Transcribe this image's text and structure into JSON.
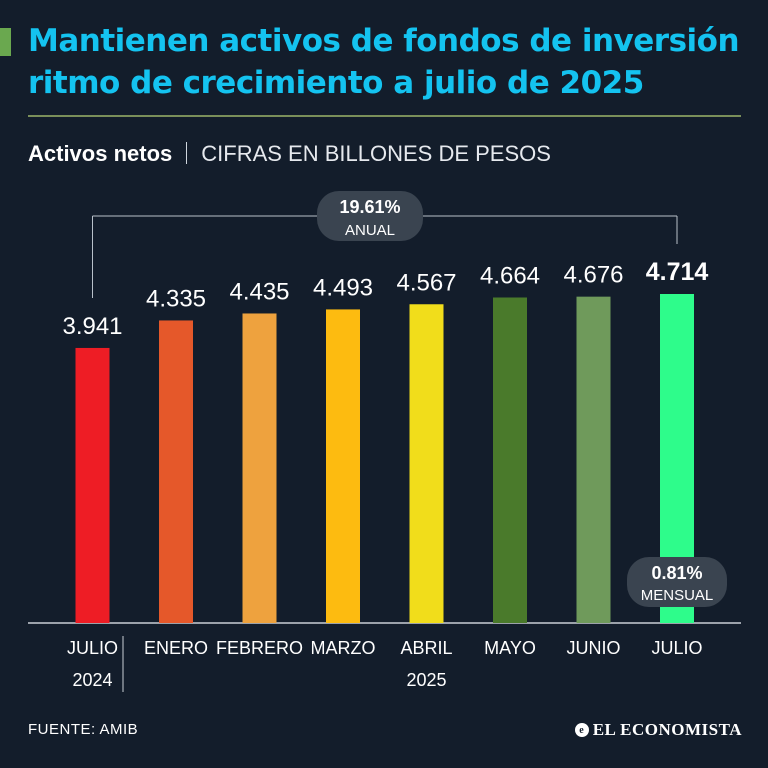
{
  "header": {
    "title": "Mantienen activos de fondos de inversión ritmo de crecimiento a julio de 2025",
    "subtitle_bold": "Activos netos",
    "subtitle_light": "CIFRAS EN BILLONES DE PESOS"
  },
  "colors": {
    "background": "#131d2b",
    "title": "#14c3f0",
    "accent": "#6aa84f",
    "badge": "#3a4450"
  },
  "chart_data": {
    "type": "bar",
    "categories": [
      "JULIO 2024",
      "ENERO",
      "FEBRERO",
      "MARZO",
      "ABRIL 2025",
      "MAYO",
      "JUNIO",
      "JULIO"
    ],
    "category_lines": [
      [
        "JULIO",
        "2024"
      ],
      [
        "ENERO"
      ],
      [
        "FEBRERO"
      ],
      [
        "MARZO"
      ],
      [
        "ABRIL",
        "2025"
      ],
      [
        "MAYO"
      ],
      [
        "JUNIO"
      ],
      [
        "JULIO"
      ]
    ],
    "values": [
      3.941,
      4.335,
      4.435,
      4.493,
      4.567,
      4.664,
      4.676,
      4.714
    ],
    "value_labels": [
      "3.941",
      "4.335",
      "4.435",
      "4.493",
      "4.567",
      "4.664",
      "4.676",
      "4.714"
    ],
    "bar_colors": [
      "#ee1d25",
      "#e5582a",
      "#eea23e",
      "#fdbb10",
      "#f1dd1b",
      "#4a7a2b",
      "#6f9a5b",
      "#2efc8b"
    ],
    "ylim": [
      0,
      4.714
    ],
    "highlight_index": 7,
    "annotations": {
      "annual": {
        "value": "19.61%",
        "label": "ANUAL"
      },
      "monthly": {
        "value": "0.81%",
        "label": "MENSUAL"
      }
    }
  },
  "footer": {
    "source": "FUENTE: AMIB",
    "brand": "EL ECONOMISTA",
    "brand_mark": "e"
  }
}
